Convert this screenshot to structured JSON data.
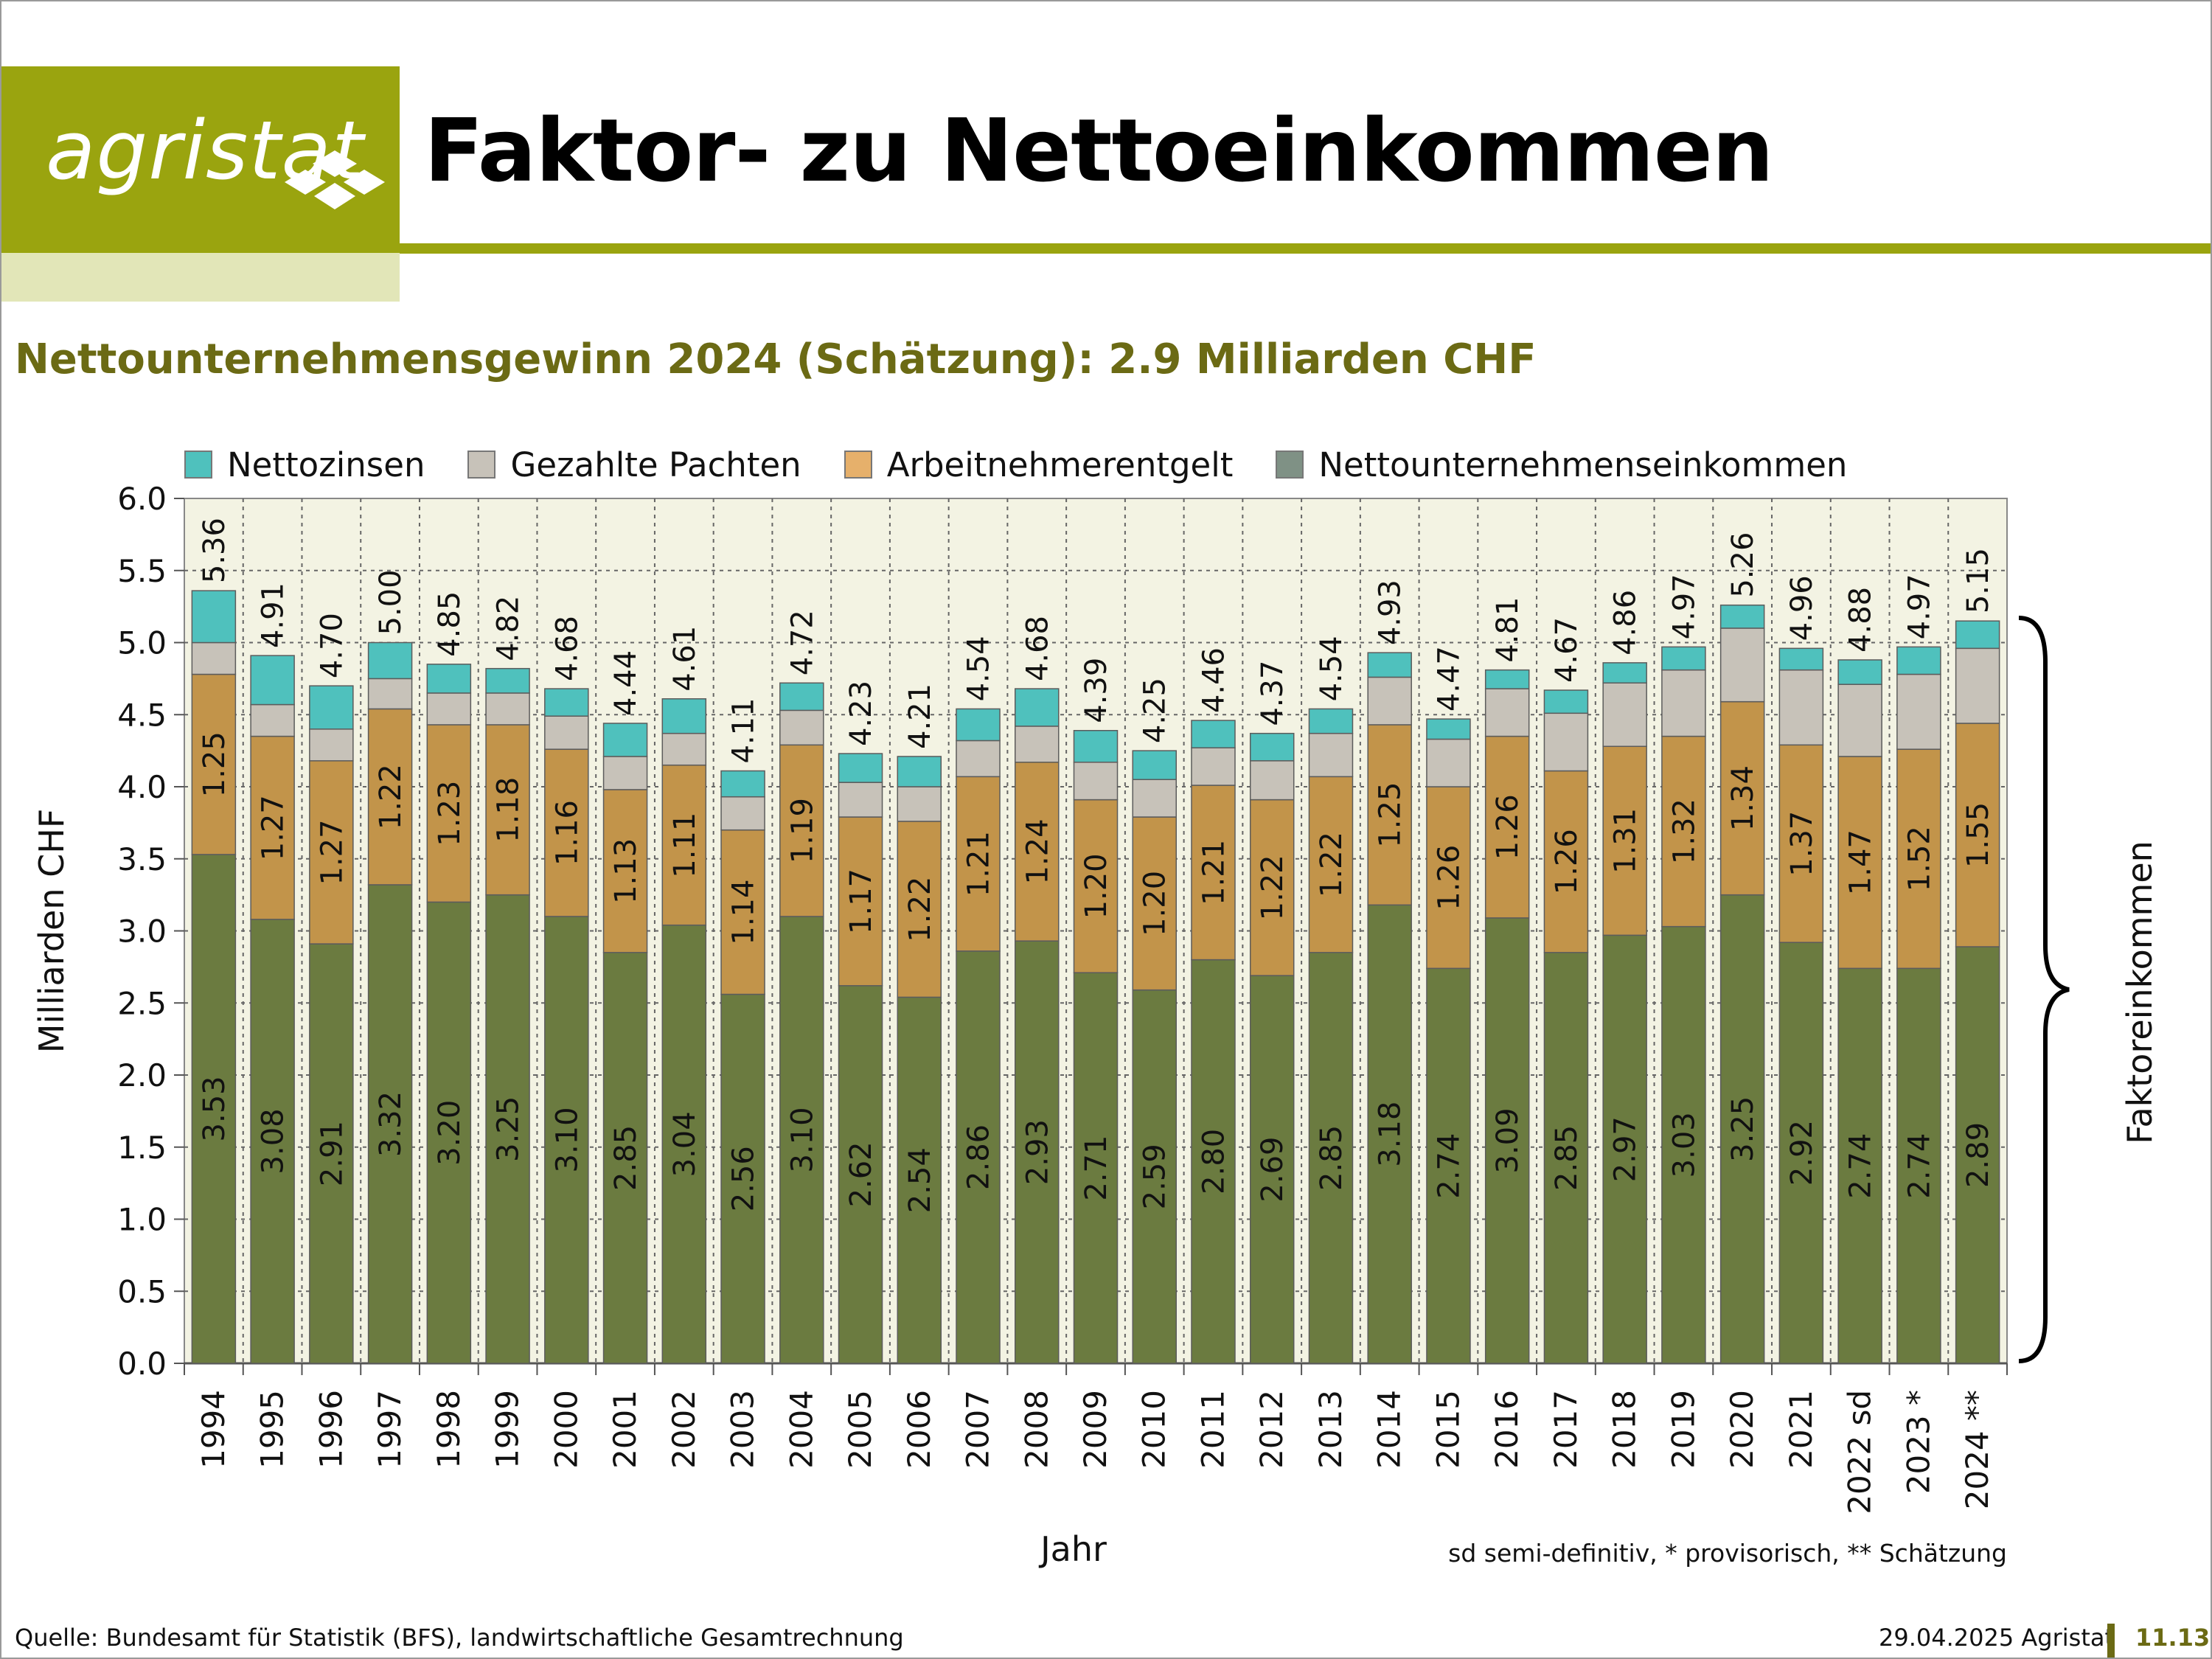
{
  "header": {
    "logo_text": "agristat",
    "title": "Faktor- zu Nettoeinkommen"
  },
  "subtitle": "Nettounternehmensgewinn 2024 (Schätzung): 2.9 Milliarden CHF",
  "colors": {
    "brand": "#9aa40f",
    "brand_light": "#e2e6b8",
    "subtitle": "#6b6a14",
    "plot_bg": "#f3f3e3",
    "nettozinsen": "#4fc1bd",
    "pachten": "#c7c2b9",
    "arbeitnehmer": "#c2944a",
    "nettounternehmen": "#6b7b40",
    "nettounternehmen_legend": "#7f9185"
  },
  "chart_data": {
    "type": "bar",
    "stacked": true,
    "ylabel": "Milliarden CHF",
    "xlabel": "Jahr",
    "ylim": [
      0,
      6
    ],
    "yticks": [
      "0.0",
      "0.5",
      "1.0",
      "1.5",
      "2.0",
      "2.5",
      "3.0",
      "3.5",
      "4.0",
      "4.5",
      "5.0",
      "5.5",
      "6.0"
    ],
    "grid": true,
    "legend_position": "top",
    "categories": [
      "1994",
      "1995",
      "1996",
      "1997",
      "1998",
      "1999",
      "2000",
      "2001",
      "2002",
      "2003",
      "2004",
      "2005",
      "2006",
      "2007",
      "2008",
      "2009",
      "2010",
      "2011",
      "2012",
      "2013",
      "2014",
      "2015",
      "2016",
      "2017",
      "2018",
      "2019",
      "2020",
      "2021",
      "2022 sd",
      "2023 *",
      "2024 **"
    ],
    "series": [
      {
        "name": "Nettounternehmenseinkommen",
        "values": [
          3.53,
          3.08,
          2.91,
          3.32,
          3.2,
          3.25,
          3.1,
          2.85,
          3.04,
          2.56,
          3.1,
          2.62,
          2.54,
          2.86,
          2.93,
          2.71,
          2.59,
          2.8,
          2.69,
          2.85,
          3.18,
          2.74,
          3.09,
          2.85,
          2.97,
          3.03,
          3.25,
          2.92,
          2.74,
          2.74,
          2.89
        ]
      },
      {
        "name": "Arbeitnehmerentgelt",
        "values": [
          1.25,
          1.27,
          1.27,
          1.22,
          1.23,
          1.18,
          1.16,
          1.13,
          1.11,
          1.14,
          1.19,
          1.17,
          1.22,
          1.21,
          1.24,
          1.2,
          1.2,
          1.21,
          1.22,
          1.22,
          1.25,
          1.26,
          1.26,
          1.26,
          1.31,
          1.32,
          1.34,
          1.37,
          1.47,
          1.52,
          1.55
        ]
      },
      {
        "name": "Gezahlte Pachten",
        "values": [
          0.22,
          0.22,
          0.22,
          0.21,
          0.22,
          0.22,
          0.23,
          0.23,
          0.22,
          0.23,
          0.24,
          0.24,
          0.24,
          0.25,
          0.25,
          0.26,
          0.26,
          0.26,
          0.27,
          0.3,
          0.33,
          0.33,
          0.33,
          0.4,
          0.44,
          0.46,
          0.51,
          0.52,
          0.5,
          0.52,
          0.52
        ]
      },
      {
        "name": "Nettozinsen",
        "values": [
          0.36,
          0.34,
          0.3,
          0.25,
          0.2,
          0.17,
          0.19,
          0.23,
          0.24,
          0.18,
          0.19,
          0.2,
          0.21,
          0.22,
          0.26,
          0.22,
          0.2,
          0.19,
          0.19,
          0.17,
          0.17,
          0.14,
          0.13,
          0.16,
          0.14,
          0.16,
          0.16,
          0.15,
          0.17,
          0.19,
          0.19
        ]
      }
    ],
    "totals": [
      "5.36",
      "4.91",
      "4.70",
      "5.00",
      "4.85",
      "4.82",
      "4.68",
      "4.44",
      "4.61",
      "4.11",
      "4.72",
      "4.23",
      "4.21",
      "4.54",
      "4.68",
      "4.39",
      "4.25",
      "4.46",
      "4.37",
      "4.54",
      "4.93",
      "4.47",
      "4.81",
      "4.67",
      "4.86",
      "4.97",
      "5.26",
      "4.96",
      "4.88",
      "4.97",
      "5.15"
    ],
    "bottom_labels": [
      "3.53",
      "3.08",
      "2.91",
      "3.32",
      "3.20",
      "3.25",
      "3.10",
      "2.85",
      "3.04",
      "2.56",
      "3.10",
      "2.62",
      "2.54",
      "2.86",
      "2.93",
      "2.71",
      "2.59",
      "2.80",
      "2.69",
      "2.85",
      "3.18",
      "2.74",
      "3.09",
      "2.85",
      "2.97",
      "3.03",
      "3.25",
      "2.92",
      "2.74",
      "2.74",
      "2.89"
    ],
    "middle_labels": [
      "1.25",
      "1.27",
      "1.27",
      "1.22",
      "1.23",
      "1.18",
      "1.16",
      "1.13",
      "1.11",
      "1.14",
      "1.19",
      "1.17",
      "1.22",
      "1.21",
      "1.24",
      "1.20",
      "1.20",
      "1.21",
      "1.22",
      "1.22",
      "1.25",
      "1.26",
      "1.26",
      "1.26",
      "1.31",
      "1.32",
      "1.34",
      "1.37",
      "1.47",
      "1.52",
      "1.55"
    ],
    "legend": [
      "Nettozinsen",
      "Gezahlte Pachten",
      "Arbeitnehmerentgelt",
      "Nettounternehmenseinkommen"
    ],
    "brace_label": "Faktoreinkommen",
    "footnote": "sd semi-definitiv, * provisorisch, ** Schätzung"
  },
  "footer": {
    "source": "Quelle: Bundesamt für Statistik (BFS), landwirtschaftliche Gesamtrechnung",
    "date": "29.04.2025 Agristat",
    "page": "11.13"
  }
}
